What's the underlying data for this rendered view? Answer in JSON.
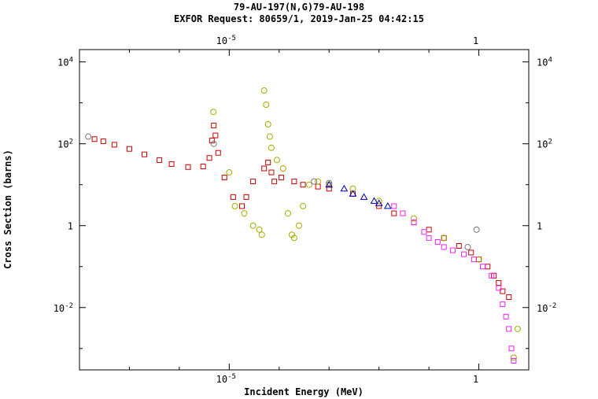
{
  "chart_data": {
    "type": "scatter",
    "title": "79-AU-197(N,G)79-AU-198",
    "subtitle": "EXFOR Request: 80659/1, 2019-Jan-25 04:42:15",
    "xlabel": "Incident Energy (MeV)",
    "ylabel": "Cross Section (barns)",
    "x_scale": "log",
    "y_scale": "log",
    "xlim": [
      1e-08,
      10
    ],
    "ylim": [
      0.0003,
      20000
    ],
    "grid": false,
    "legend": "none",
    "x_ticks": [
      {
        "value": 1e-05,
        "label": "10",
        "exp": "-5"
      },
      {
        "value": 1,
        "label": "1",
        "exp": ""
      }
    ],
    "y_ticks": [
      {
        "value": 10000,
        "label": "10",
        "exp": "4"
      },
      {
        "value": 100,
        "label": "10",
        "exp": "2"
      },
      {
        "value": 1,
        "label": "1",
        "exp": ""
      },
      {
        "value": 0.01,
        "label": "10",
        "exp": "-2"
      }
    ],
    "series": [
      {
        "color": "#cc0000",
        "marker": "square",
        "points": [
          [
            2e-08,
            130
          ],
          [
            3e-08,
            115
          ],
          [
            5e-08,
            95
          ],
          [
            1e-07,
            75
          ],
          [
            2e-07,
            55
          ],
          [
            4e-07,
            40
          ],
          [
            7e-07,
            32
          ],
          [
            1.5e-06,
            27
          ],
          [
            3e-06,
            28
          ],
          [
            4e-06,
            45
          ],
          [
            4.5e-06,
            120
          ],
          [
            4.9e-06,
            280
          ],
          [
            5.3e-06,
            160
          ],
          [
            6e-06,
            60
          ],
          [
            8e-06,
            15
          ],
          [
            1.2e-05,
            5
          ],
          [
            1.8e-05,
            3
          ],
          [
            2.2e-05,
            5
          ],
          [
            3e-05,
            12
          ],
          [
            5e-05,
            25
          ],
          [
            6e-05,
            35
          ],
          [
            7e-05,
            20
          ],
          [
            8e-05,
            12
          ],
          [
            0.00011,
            15
          ],
          [
            0.0002,
            12
          ],
          [
            0.0003,
            10
          ],
          [
            0.0006,
            9
          ],
          [
            0.001,
            8
          ],
          [
            0.003,
            6
          ],
          [
            0.01,
            3
          ],
          [
            0.02,
            2
          ],
          [
            0.05,
            1.2
          ],
          [
            0.1,
            0.8
          ],
          [
            0.2,
            0.5
          ],
          [
            0.4,
            0.32
          ],
          [
            0.7,
            0.22
          ],
          [
            1,
            0.15
          ],
          [
            1.5,
            0.1
          ],
          [
            2,
            0.06
          ],
          [
            2.5,
            0.04
          ],
          [
            3,
            0.025
          ],
          [
            4,
            0.018
          ]
        ]
      },
      {
        "color": "#aaaa00",
        "marker": "circle",
        "points": [
          [
            4.8e-06,
            600
          ],
          [
            1e-05,
            20
          ],
          [
            1.3e-05,
            3
          ],
          [
            2e-05,
            2
          ],
          [
            3e-05,
            1
          ],
          [
            4e-05,
            0.8
          ],
          [
            4.5e-05,
            0.6
          ],
          [
            5e-05,
            2000
          ],
          [
            5.5e-05,
            900
          ],
          [
            6e-05,
            300
          ],
          [
            6.5e-05,
            150
          ],
          [
            7e-05,
            80
          ],
          [
            9e-05,
            40
          ],
          [
            0.00012,
            25
          ],
          [
            0.00015,
            2
          ],
          [
            0.00018,
            0.6
          ],
          [
            0.0002,
            0.5
          ],
          [
            0.00025,
            1
          ],
          [
            0.0003,
            3
          ],
          [
            0.0004,
            10
          ],
          [
            0.0006,
            12
          ],
          [
            0.001,
            10
          ],
          [
            0.003,
            8
          ],
          [
            0.01,
            4
          ],
          [
            0.05,
            1.5
          ],
          [
            0.2,
            0.5
          ],
          [
            1,
            0.15
          ],
          [
            5,
            0.0006
          ],
          [
            6,
            0.003
          ]
        ]
      },
      {
        "color": "#ee22ee",
        "marker": "square",
        "points": [
          [
            0.02,
            3
          ],
          [
            0.03,
            2
          ],
          [
            0.05,
            1.2
          ],
          [
            0.08,
            0.7
          ],
          [
            0.1,
            0.5
          ],
          [
            0.15,
            0.4
          ],
          [
            0.2,
            0.3
          ],
          [
            0.3,
            0.25
          ],
          [
            0.5,
            0.2
          ],
          [
            0.8,
            0.15
          ],
          [
            1.2,
            0.1
          ],
          [
            1.8,
            0.06
          ],
          [
            2.5,
            0.03
          ],
          [
            3,
            0.012
          ],
          [
            3.5,
            0.006
          ],
          [
            4,
            0.003
          ],
          [
            4.5,
            0.001
          ],
          [
            5,
            0.0005
          ]
        ]
      },
      {
        "color": "#0000aa",
        "marker": "triangle",
        "points": [
          [
            0.001,
            10
          ],
          [
            0.002,
            8
          ],
          [
            0.003,
            6
          ],
          [
            0.005,
            5
          ],
          [
            0.008,
            4
          ],
          [
            0.01,
            3.5
          ],
          [
            0.015,
            3
          ]
        ]
      },
      {
        "color": "#777777",
        "marker": "circle",
        "points": [
          [
            1.5e-08,
            150
          ],
          [
            4.9e-06,
            100
          ],
          [
            0.0005,
            12
          ],
          [
            0.001,
            11
          ],
          [
            0.9,
            0.8
          ],
          [
            0.6,
            0.3
          ]
        ]
      }
    ]
  }
}
